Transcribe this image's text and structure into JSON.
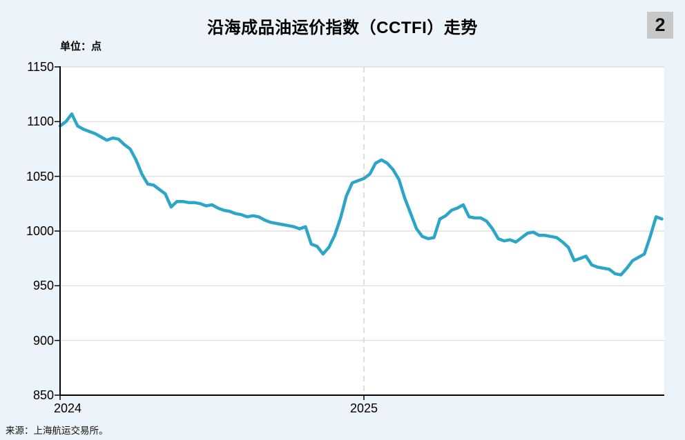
{
  "title": "沿海成品油运价指数（CCTFI）走势",
  "page_badge": "2",
  "unit_label": "单位：点",
  "source": "来源：上海航运交易所。",
  "colors": {
    "background": "#ECF3F9",
    "plot_background": "#FFFFFF",
    "grid": "#D9D9D9",
    "year_divider": "#CFCFCF",
    "axis": "#000000",
    "line": "#2BA6C8",
    "badge_bg": "#C8C8C8"
  },
  "chart_data": {
    "type": "line",
    "title": "沿海成品油运价指数（CCTFI）走势",
    "ylabel": "单位：点",
    "series_name": "CCTFI",
    "frequency": "weekly",
    "grid": true,
    "ylim": [
      850,
      1150
    ],
    "yticks": [
      1150,
      1100,
      1050,
      1000,
      950,
      900,
      850
    ],
    "x_year_labels": [
      "2024",
      "2025"
    ],
    "x_tick_indices": [
      0,
      52
    ],
    "line_color": "#2BA6C8",
    "values": [
      1096,
      1100,
      1107,
      1096,
      1093,
      1091,
      1089,
      1086,
      1083,
      1085,
      1084,
      1079,
      1075,
      1065,
      1052,
      1043,
      1042,
      1038,
      1034,
      1022,
      1027,
      1027,
      1026,
      1026,
      1025,
      1023,
      1024,
      1021,
      1019,
      1018,
      1016,
      1015,
      1013,
      1014,
      1013,
      1010,
      1008,
      1007,
      1006,
      1005,
      1004,
      1002,
      1004,
      988,
      986,
      979,
      985,
      996,
      1012,
      1032,
      1044,
      1046,
      1048,
      1052,
      1062,
      1065,
      1062,
      1056,
      1047,
      1030,
      1016,
      1002,
      995,
      993,
      994,
      1011,
      1014,
      1019,
      1021,
      1024,
      1013,
      1012,
      1012,
      1009,
      1002,
      993,
      991,
      992,
      990,
      994,
      998,
      999,
      996,
      996,
      995,
      994,
      990,
      985,
      973,
      975,
      977,
      969,
      967,
      966,
      965,
      961,
      960,
      966,
      973,
      976,
      979,
      995,
      1013,
      1011
    ]
  }
}
